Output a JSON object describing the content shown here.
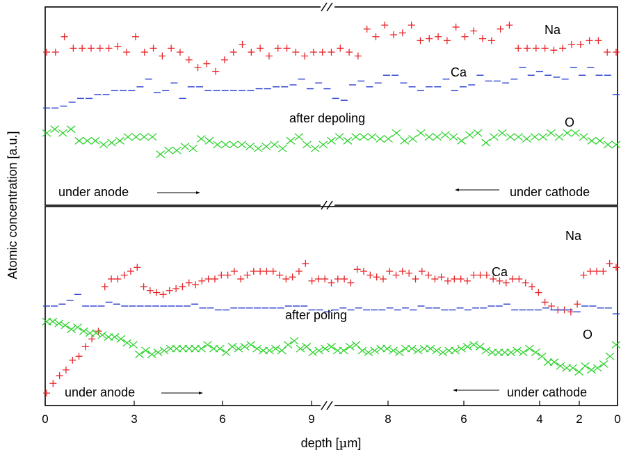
{
  "chart_data": [
    {
      "type": "scatter",
      "panel": "top",
      "annotation": "after depoling",
      "left_label": "under anode",
      "right_label": "under cathode",
      "ylabel": "Atomic concentration [a.u.]",
      "xlabel": "depth [µm]",
      "xlabel_prefix": "depth [",
      "xlabel_mu": "µ",
      "xlabel_suffix": "m]",
      "x_ticks_left": [
        "0",
        "3",
        "6",
        "9"
      ],
      "x_ticks_right": [
        "8",
        "6",
        "4",
        "2",
        "0"
      ],
      "series": [
        {
          "name": "Na",
          "marker": "+",
          "color": "#e8262a",
          "y": [
            0.78,
            0.78,
            0.86,
            0.8,
            0.8,
            0.8,
            0.8,
            0.8,
            0.81,
            0.78,
            0.86,
            0.78,
            0.8,
            0.76,
            0.8,
            0.78,
            0.74,
            0.7,
            0.72,
            0.68,
            0.74,
            0.78,
            0.82,
            0.78,
            0.8,
            0.76,
            0.8,
            0.8,
            0.78,
            0.76,
            0.78,
            0.78,
            0.78,
            0.8,
            0.78,
            0.76,
            0.9,
            0.86,
            0.92,
            0.87,
            0.88,
            0.92,
            0.84,
            0.85,
            0.86,
            0.84,
            0.91,
            0.86,
            0.89,
            0.85,
            0.84,
            0.9,
            0.92,
            0.8,
            0.8,
            0.8,
            0.8,
            0.79,
            0.8,
            0.82,
            0.82,
            0.84,
            0.84,
            0.78,
            0.78
          ]
        },
        {
          "name": "Ca",
          "marker": "-",
          "color": "#2a3fd0",
          "y": [
            0.49,
            0.49,
            0.5,
            0.52,
            0.54,
            0.54,
            0.56,
            0.56,
            0.58,
            0.58,
            0.58,
            0.6,
            0.64,
            0.57,
            0.58,
            0.62,
            0.54,
            0.6,
            0.6,
            0.58,
            0.58,
            0.58,
            0.58,
            0.58,
            0.58,
            0.59,
            0.59,
            0.6,
            0.6,
            0.61,
            0.64,
            0.59,
            0.62,
            0.59,
            0.54,
            0.53,
            0.61,
            0.63,
            0.6,
            0.62,
            0.66,
            0.66,
            0.62,
            0.6,
            0.58,
            0.6,
            0.6,
            0.64,
            0.58,
            0.6,
            0.61,
            0.66,
            0.63,
            0.63,
            0.62,
            0.64,
            0.7,
            0.66,
            0.68,
            0.66,
            0.65,
            0.64,
            0.7,
            0.66,
            0.7,
            0.66,
            0.66,
            0.56
          ]
        },
        {
          "name": "O",
          "marker": "x",
          "color": "#22d022",
          "y": [
            0.36,
            0.38,
            0.36,
            0.38,
            0.32,
            0.32,
            0.32,
            0.3,
            0.31,
            0.32,
            0.34,
            0.34,
            0.34,
            0.34,
            0.25,
            0.27,
            0.27,
            0.29,
            0.28,
            0.33,
            0.32,
            0.3,
            0.3,
            0.3,
            0.3,
            0.29,
            0.28,
            0.29,
            0.3,
            0.28,
            0.32,
            0.34,
            0.3,
            0.28,
            0.3,
            0.32,
            0.34,
            0.32,
            0.34,
            0.34,
            0.34,
            0.33,
            0.33,
            0.36,
            0.32,
            0.33,
            0.36,
            0.34,
            0.34,
            0.35,
            0.34,
            0.32,
            0.35,
            0.36,
            0.31,
            0.34,
            0.36,
            0.34,
            0.34,
            0.33,
            0.34,
            0.34,
            0.36,
            0.34,
            0.36,
            0.36,
            0.34,
            0.32,
            0.32,
            0.3,
            0.3
          ]
        }
      ]
    },
    {
      "type": "scatter",
      "panel": "bottom",
      "annotation": "after poling",
      "left_label": "under anode",
      "right_label": "under cathode",
      "series": [
        {
          "name": "Na",
          "marker": "+",
          "color": "#e8262a",
          "y": [
            0.05,
            0.1,
            0.14,
            0.17,
            0.22,
            0.24,
            0.29,
            0.33,
            0.37,
            0.6,
            0.64,
            0.64,
            0.66,
            0.68,
            0.7,
            0.6,
            0.58,
            0.57,
            0.56,
            0.58,
            0.59,
            0.6,
            0.62,
            0.61,
            0.63,
            0.64,
            0.64,
            0.66,
            0.66,
            0.68,
            0.64,
            0.66,
            0.68,
            0.68,
            0.68,
            0.68,
            0.66,
            0.64,
            0.65,
            0.68,
            0.72,
            0.63,
            0.64,
            0.64,
            0.62,
            0.64,
            0.64,
            0.62,
            0.69,
            0.68,
            0.66,
            0.65,
            0.64,
            0.68,
            0.66,
            0.68,
            0.67,
            0.64,
            0.68,
            0.66,
            0.64,
            0.65,
            0.63,
            0.64,
            0.64,
            0.63,
            0.66,
            0.66,
            0.66,
            0.64,
            0.63,
            0.62,
            0.64,
            0.64,
            0.62,
            0.6,
            0.57,
            0.52,
            0.5,
            0.48,
            0.48,
            0.47,
            0.51,
            0.66,
            0.68,
            0.68,
            0.68,
            0.72,
            0.7
          ]
        },
        {
          "name": "Ca",
          "marker": "-",
          "color": "#2a3fd0",
          "y": [
            0.5,
            0.5,
            0.51,
            0.53,
            0.56,
            0.5,
            0.5,
            0.5,
            0.52,
            0.51,
            0.5,
            0.5,
            0.5,
            0.5,
            0.5,
            0.5,
            0.5,
            0.5,
            0.5,
            0.51,
            0.49,
            0.49,
            0.48,
            0.48,
            0.49,
            0.49,
            0.49,
            0.49,
            0.49,
            0.49,
            0.49,
            0.5,
            0.5,
            0.5,
            0.48,
            0.48,
            0.47,
            0.48,
            0.49,
            0.48,
            0.49,
            0.48,
            0.48,
            0.48,
            0.49,
            0.48,
            0.49,
            0.48,
            0.5,
            0.49,
            0.49,
            0.48,
            0.48,
            0.49,
            0.48,
            0.49,
            0.49,
            0.5,
            0.5,
            0.51,
            0.48,
            0.48,
            0.48,
            0.48,
            0.49,
            0.48,
            0.48,
            0.48,
            0.47,
            0.5,
            0.5,
            0.49,
            0.49,
            0.46
          ]
        },
        {
          "name": "O",
          "marker": "x",
          "color": "#22d022",
          "y": [
            0.42,
            0.42,
            0.41,
            0.4,
            0.38,
            0.39,
            0.37,
            0.36,
            0.36,
            0.35,
            0.34,
            0.34,
            0.33,
            0.31,
            0.3,
            0.25,
            0.27,
            0.25,
            0.26,
            0.27,
            0.28,
            0.28,
            0.28,
            0.28,
            0.28,
            0.28,
            0.3,
            0.28,
            0.28,
            0.26,
            0.29,
            0.28,
            0.29,
            0.3,
            0.28,
            0.27,
            0.27,
            0.28,
            0.27,
            0.3,
            0.32,
            0.28,
            0.29,
            0.26,
            0.27,
            0.28,
            0.29,
            0.27,
            0.27,
            0.29,
            0.3,
            0.27,
            0.26,
            0.27,
            0.28,
            0.28,
            0.27,
            0.26,
            0.28,
            0.28,
            0.27,
            0.28,
            0.28,
            0.27,
            0.26,
            0.27,
            0.27,
            0.28,
            0.29,
            0.3,
            0.29,
            0.27,
            0.26,
            0.26,
            0.26,
            0.26,
            0.27,
            0.26,
            0.28,
            0.26,
            0.24,
            0.21,
            0.21,
            0.19,
            0.18,
            0.18,
            0.16,
            0.19,
            0.17,
            0.18,
            0.2,
            0.24,
            0.3
          ]
        }
      ]
    }
  ],
  "labels": {
    "top": {
      "Na": "Na",
      "Ca": "Ca",
      "O": "O"
    },
    "bottom": {
      "Na": "Na",
      "Ca": "Ca",
      "O": "O"
    }
  }
}
